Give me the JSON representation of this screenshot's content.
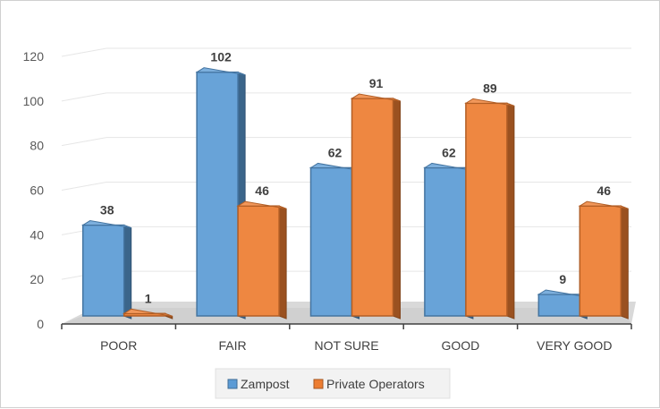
{
  "chart_data": {
    "type": "bar",
    "categories": [
      "POOR",
      "FAIR",
      "NOT SURE",
      "GOOD",
      "VERY GOOD"
    ],
    "series": [
      {
        "name": "Zampost",
        "values": [
          38,
          102,
          62,
          62,
          9
        ],
        "color": "#5b9bd5"
      },
      {
        "name": "Private Operators",
        "values": [
          1,
          46,
          91,
          89,
          46
        ],
        "color": "#ed7d31"
      }
    ],
    "ylim": [
      0,
      120
    ],
    "yticks": [
      0,
      20,
      40,
      60,
      80,
      100,
      120
    ],
    "grid": true,
    "legend_position": "bottom",
    "style": "3d-clustered-column"
  }
}
